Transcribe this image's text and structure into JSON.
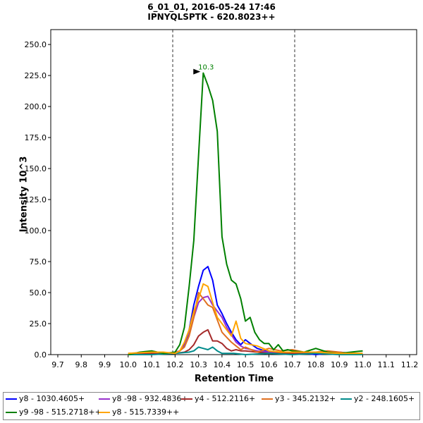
{
  "header": {
    "title_line1": "6_01_01, 2016-05-24 17:46",
    "title_line2": "IPNYQLSPTK - 620.8023++"
  },
  "chart_data": {
    "type": "line",
    "title": "6_01_01, 2016-05-24 17:46 / IPNYQLSPTK - 620.8023++",
    "xlabel": "Retention Time",
    "ylabel": "Intensity 10^3",
    "xlim": [
      9.67,
      11.23
    ],
    "ylim": [
      0,
      262
    ],
    "xticks": [
      "9.7",
      "9.8",
      "9.9",
      "10.0",
      "10.1",
      "10.2",
      "10.3",
      "10.4",
      "10.5",
      "10.6",
      "10.7",
      "10.8",
      "10.9",
      "11.0",
      "11.1",
      "11.2"
    ],
    "yticks": [
      "0.0",
      "25.0",
      "50.0",
      "75.0",
      "100.0",
      "125.0",
      "150.0",
      "175.0",
      "200.0",
      "225.0",
      "250.0"
    ],
    "boundaries": [
      10.19,
      10.71
    ],
    "peak_annotation": {
      "label": "10.3",
      "x": 10.32,
      "y": 227,
      "color": "#008000"
    },
    "grid": false,
    "legend_position": "bottom",
    "series": [
      {
        "name": "y8 - 1030.4605+",
        "color": "#0000ff",
        "x": [
          10.0,
          10.05,
          10.1,
          10.15,
          10.2,
          10.22,
          10.24,
          10.26,
          10.28,
          10.3,
          10.32,
          10.34,
          10.36,
          10.38,
          10.4,
          10.42,
          10.44,
          10.46,
          10.48,
          10.5,
          10.52,
          10.55,
          10.6,
          10.65,
          10.7,
          10.75,
          10.8,
          10.85,
          10.9,
          10.95,
          11.0
        ],
        "y": [
          0,
          1,
          1,
          1,
          1,
          3,
          8,
          20,
          40,
          55,
          68,
          71,
          60,
          40,
          33,
          25,
          18,
          12,
          8,
          12,
          9,
          5,
          2,
          1,
          1,
          1,
          0,
          1,
          2,
          1,
          0
        ]
      },
      {
        "name": "y8 -98 - 932.4836+",
        "color": "#9932cc",
        "x": [
          10.0,
          10.1,
          10.18,
          10.22,
          10.24,
          10.26,
          10.28,
          10.3,
          10.32,
          10.34,
          10.36,
          10.38,
          10.4,
          10.42,
          10.44,
          10.46,
          10.48,
          10.5,
          10.55,
          10.6,
          10.7,
          10.8,
          10.9,
          11.0
        ],
        "y": [
          0,
          1,
          1,
          3,
          7,
          16,
          30,
          42,
          46,
          47,
          40,
          35,
          30,
          22,
          16,
          10,
          7,
          5,
          3,
          2,
          1,
          1,
          1,
          0
        ]
      },
      {
        "name": "y4 - 512.2116+",
        "color": "#a52a2a",
        "x": [
          10.0,
          10.1,
          10.2,
          10.24,
          10.26,
          10.28,
          10.3,
          10.32,
          10.34,
          10.36,
          10.38,
          10.4,
          10.42,
          10.44,
          10.46,
          10.48,
          10.5,
          10.55,
          10.6,
          10.7,
          10.8,
          10.9,
          11.0
        ],
        "y": [
          0,
          1,
          1,
          2,
          4,
          8,
          15,
          18,
          20,
          11,
          11,
          9,
          5,
          3,
          4,
          3,
          3,
          2,
          1,
          1,
          1,
          1,
          0
        ]
      },
      {
        "name": "y3 - 345.2132+",
        "color": "#e07020",
        "x": [
          10.0,
          10.1,
          10.2,
          10.22,
          10.24,
          10.26,
          10.28,
          10.3,
          10.32,
          10.34,
          10.36,
          10.38,
          10.4,
          10.42,
          10.44,
          10.46,
          10.48,
          10.5,
          10.55,
          10.6,
          10.65,
          10.7,
          10.75,
          10.8,
          10.85,
          10.9,
          10.95,
          11.0
        ],
        "y": [
          1,
          2,
          1,
          3,
          6,
          15,
          30,
          50,
          45,
          40,
          38,
          28,
          18,
          14,
          10,
          7,
          4,
          6,
          2,
          5,
          3,
          4,
          2,
          2,
          3,
          2,
          1,
          1
        ]
      },
      {
        "name": "y2 - 248.1605+",
        "color": "#008b8b",
        "x": [
          10.0,
          10.1,
          10.2,
          10.26,
          10.28,
          10.3,
          10.32,
          10.34,
          10.36,
          10.38,
          10.4,
          10.45,
          10.5,
          10.6,
          10.7,
          10.8,
          10.9,
          11.0
        ],
        "y": [
          0,
          0,
          1,
          2,
          3,
          6,
          5,
          4,
          6,
          3,
          1,
          1,
          0,
          1,
          0,
          1,
          0,
          0
        ]
      },
      {
        "name": "y9 -98 - 515.2718++",
        "color": "#008000",
        "x": [
          10.0,
          10.05,
          10.1,
          10.15,
          10.2,
          10.22,
          10.24,
          10.26,
          10.28,
          10.3,
          10.32,
          10.34,
          10.36,
          10.38,
          10.4,
          10.42,
          10.44,
          10.46,
          10.48,
          10.5,
          10.52,
          10.54,
          10.56,
          10.58,
          10.6,
          10.62,
          10.64,
          10.66,
          10.68,
          10.7,
          10.75,
          10.8,
          10.85,
          10.9,
          10.95,
          11.0
        ],
        "y": [
          0,
          2,
          3,
          1,
          2,
          8,
          22,
          55,
          92,
          160,
          227,
          217,
          205,
          180,
          95,
          73,
          60,
          57,
          45,
          27,
          30,
          18,
          12,
          9,
          9,
          4,
          8,
          3,
          4,
          3,
          2,
          5,
          2,
          1,
          2,
          3
        ]
      },
      {
        "name": "y8 - 515.7339++",
        "color": "#ffa500",
        "x": [
          10.0,
          10.1,
          10.15,
          10.2,
          10.22,
          10.24,
          10.26,
          10.28,
          10.3,
          10.32,
          10.34,
          10.36,
          10.38,
          10.4,
          10.42,
          10.44,
          10.46,
          10.48,
          10.5,
          10.55,
          10.6,
          10.65,
          10.7,
          10.8,
          10.9,
          11.0
        ],
        "y": [
          1,
          2,
          2,
          1,
          3,
          10,
          20,
          35,
          45,
          57,
          55,
          42,
          30,
          25,
          20,
          15,
          27,
          13,
          9,
          7,
          3,
          2,
          2,
          2,
          1,
          1
        ]
      }
    ]
  }
}
